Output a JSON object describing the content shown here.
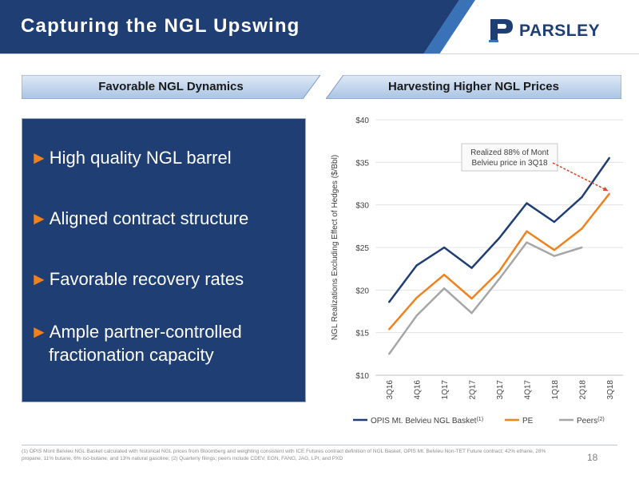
{
  "header": {
    "title": "Capturing the NGL Upswing",
    "logo_text": "PARSLEY",
    "bar_color": "#1f3e73"
  },
  "banners": [
    {
      "label": "Favorable NGL Dynamics"
    },
    {
      "label": "Harvesting Higher NGL Prices"
    }
  ],
  "bullets": [
    {
      "arrow": "►",
      "lines": [
        "High quality NGL barrel"
      ]
    },
    {
      "arrow": "►",
      "lines": [
        "Aligned contract structure"
      ]
    },
    {
      "arrow": "►",
      "lines": [
        "Favorable recovery rates"
      ]
    },
    {
      "arrow": "►",
      "lines": [
        "Ample partner-controlled",
        "fractionation capacity"
      ]
    }
  ],
  "chart_data": {
    "type": "line",
    "ylabel": "NGL Realizations Excluding Effect of Hedges ($/Bbl)",
    "ylim": [
      10,
      40
    ],
    "yticks": [
      10,
      15,
      20,
      25,
      30,
      35,
      40
    ],
    "ytick_labels": [
      "$10",
      "$15",
      "$20",
      "$25",
      "$30",
      "$35",
      "$40"
    ],
    "categories": [
      "3Q16",
      "4Q16",
      "1Q17",
      "2Q17",
      "3Q17",
      "4Q17",
      "1Q18",
      "2Q18",
      "3Q18"
    ],
    "series": [
      {
        "name": "OPIS Mt. Belvieu NGL Basket",
        "sup": "(1)",
        "color": "#1f3e73",
        "values": [
          18.6,
          22.9,
          25.0,
          22.6,
          26.1,
          30.2,
          28.0,
          30.9,
          35.5
        ]
      },
      {
        "name": "PE",
        "sup": "",
        "color": "#f0821e",
        "values": [
          15.4,
          19.1,
          21.8,
          19.0,
          22.2,
          26.9,
          24.7,
          27.2,
          31.3
        ]
      },
      {
        "name": "Peers",
        "sup": "(2)",
        "color": "#a6a6a6",
        "values": [
          12.5,
          17.0,
          20.2,
          17.3,
          21.3,
          25.6,
          24.0,
          25.0,
          null
        ]
      }
    ],
    "annotation": {
      "lines": [
        "Realized 88% of Mont",
        "Belvieu price in 3Q18"
      ]
    },
    "grid": true,
    "legend": "bottom"
  },
  "footer": {
    "footnote": "(1) OPIS Mont Belvieu NGL Basket calculated with historical NGL prices from Bloomberg and weighting consistent with ICE Futures contract definition of NGL Basket, OPIS Mt. Belvieu Non-TET Future contract; 42% ethane, 28% propane, 11% butane, 6% iso-butane, and 13% natural gasoline; (2) Quarterly filings; peers include CDEV, EGN, FANG, JAG, LPI, and PXD",
    "page": "18"
  }
}
